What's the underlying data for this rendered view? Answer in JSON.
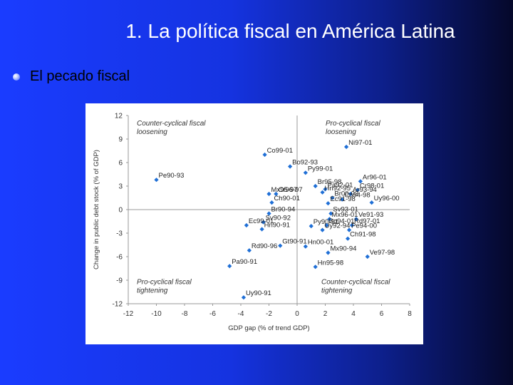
{
  "slide": {
    "title": "1. La política fiscal en América Latina",
    "subtitle": "El pecado fiscal"
  },
  "colors": {
    "point": "#1f6fd6",
    "axis": "#999999"
  },
  "chart_data": {
    "type": "scatter",
    "xlabel": "GDP gap (% of trend GDP)",
    "ylabel": "Change in public debt stock (% of GDP)",
    "xlim": [
      -12,
      8
    ],
    "ylim": [
      -12,
      12
    ],
    "xticks": [
      -12,
      -10,
      -8,
      -6,
      -4,
      -2,
      0,
      2,
      4,
      6,
      8
    ],
    "yticks": [
      12,
      9,
      6,
      3,
      0,
      -3,
      -6,
      -9,
      -12
    ],
    "grid": false,
    "quadrant_labels": [
      {
        "text": [
          "Counter-cyclical fiscal",
          "loosening"
        ],
        "position": "top-left"
      },
      {
        "text": [
          "Pro-cyclical fiscal",
          "loosening"
        ],
        "position": "top-right"
      },
      {
        "text": [
          "Pro-cyclical fiscal",
          "tightening"
        ],
        "position": "bottom-left"
      },
      {
        "text": [
          "Counter-cyclical fiscal",
          "tightening"
        ],
        "position": "bottom-right"
      }
    ],
    "points": [
      {
        "label": "Ni97-01",
        "x": 3.5,
        "y": 8.0
      },
      {
        "label": "Co99-01",
        "x": -2.3,
        "y": 7.0
      },
      {
        "label": "Bo92-93",
        "x": -0.5,
        "y": 5.5
      },
      {
        "label": "Py99-01",
        "x": 0.6,
        "y": 4.7
      },
      {
        "label": "Pe90-93",
        "x": -10.0,
        "y": 3.8
      },
      {
        "label": "Br95-98",
        "x": 1.3,
        "y": 3.0
      },
      {
        "label": "Ar96-01",
        "x": 4.5,
        "y": 3.6
      },
      {
        "label": "Pa92-01",
        "x": 2.0,
        "y": 2.6
      },
      {
        "label": "Cr98-01",
        "x": 4.3,
        "y": 2.5
      },
      {
        "label": "Mx95-97",
        "x": -2.0,
        "y": 2.0
      },
      {
        "label": "Cr96-97",
        "x": -1.5,
        "y": 2.0
      },
      {
        "label": "Hn92-95",
        "x": 1.8,
        "y": 2.2
      },
      {
        "label": "Ar93-94",
        "x": 3.8,
        "y": 2.0
      },
      {
        "label": "Br00-03",
        "x": 2.5,
        "y": 1.5
      },
      {
        "label": "Co94-98",
        "x": 3.2,
        "y": 1.3
      },
      {
        "label": "Ch90-01",
        "x": -1.8,
        "y": 0.9
      },
      {
        "label": "Uy96-00",
        "x": 5.3,
        "y": 0.9
      },
      {
        "label": "Ec91-98",
        "x": 2.2,
        "y": 0.8
      },
      {
        "label": "Br90-94",
        "x": -2.0,
        "y": -0.5
      },
      {
        "label": "Sv93-01",
        "x": 2.4,
        "y": -0.5
      },
      {
        "label": "Mx96-01",
        "x": 2.3,
        "y": -1.2
      },
      {
        "label": "Ve91-93",
        "x": 4.2,
        "y": -1.2
      },
      {
        "label": "Sv90-92",
        "x": -2.4,
        "y": -1.6
      },
      {
        "label": "Ec99-01",
        "x": -3.6,
        "y": -2.0
      },
      {
        "label": "Py90-91",
        "x": 1.0,
        "y": -2.1
      },
      {
        "label": "Bo94-01",
        "x": 2.1,
        "y": -2.0
      },
      {
        "label": "Rd97-01",
        "x": 3.9,
        "y": -2.0
      },
      {
        "label": "Hn90-91",
        "x": -2.5,
        "y": -2.5
      },
      {
        "label": "Uy92-94",
        "x": 1.8,
        "y": -2.6
      },
      {
        "label": "Pe94-00",
        "x": 3.7,
        "y": -2.6
      },
      {
        "label": "Ch91-98",
        "x": 3.6,
        "y": -3.7
      },
      {
        "label": "Gt90-91",
        "x": -1.2,
        "y": -4.6
      },
      {
        "label": "Hn00-01",
        "x": 0.6,
        "y": -4.7
      },
      {
        "label": "Rd90-96",
        "x": -3.4,
        "y": -5.2
      },
      {
        "label": "Mx90-94",
        "x": 2.2,
        "y": -5.5
      },
      {
        "label": "Ve97-98",
        "x": 5.0,
        "y": -6.0
      },
      {
        "label": "Pa90-91",
        "x": -4.8,
        "y": -7.2
      },
      {
        "label": "Hn95-98",
        "x": 1.3,
        "y": -7.3
      },
      {
        "label": "Uy90-91",
        "x": -3.8,
        "y": -11.2
      }
    ]
  }
}
